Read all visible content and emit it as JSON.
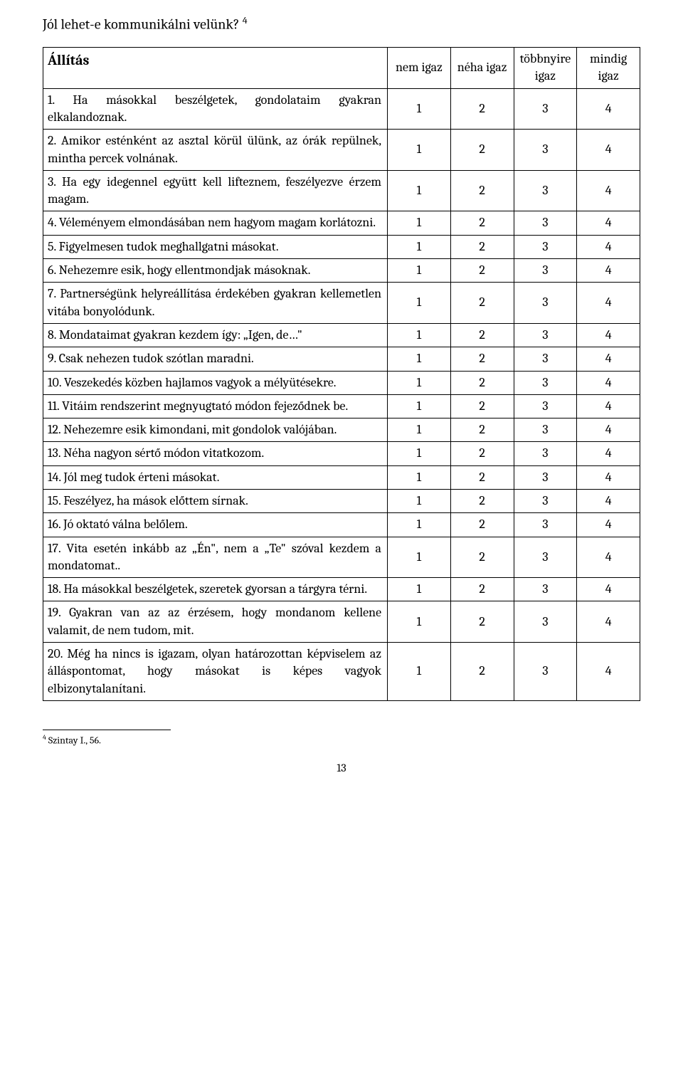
{
  "title_text": "Jól lehet-e kommunikálni velünk? ",
  "title_superscript": "4",
  "headers": {
    "statement": "Állítás",
    "col1": "nem igaz",
    "col2": "néha igaz",
    "col3": "többnyire igaz",
    "col4": "mindig igaz"
  },
  "options": [
    "1",
    "2",
    "3",
    "4"
  ],
  "items": [
    {
      "n": "1.",
      "text": "Ha másokkal beszélgetek, gondolataim gyakran elkalandoznak."
    },
    {
      "n": "2.",
      "text": "Amikor esténként az asztal körül ülünk, az órák repülnek, mintha percek volnának."
    },
    {
      "n": "3.",
      "text": "Ha egy idegennel együtt kell lifteznem, feszélyezve érzem magam."
    },
    {
      "n": "4.",
      "text": "Véleményem elmondásában nem hagyom magam korlátozni."
    },
    {
      "n": "5.",
      "text": "Figyelmesen tudok meghallgatni másokat."
    },
    {
      "n": "6.",
      "text": "Nehezemre esik, hogy ellentmondjak másoknak."
    },
    {
      "n": "7.",
      "text": "Partnerségünk helyreállítása érdekében gyakran kellemetlen vitába bonyolódunk."
    },
    {
      "n": "8.",
      "text": "Mondataimat gyakran kezdem így: „Igen, de…\""
    },
    {
      "n": "9.",
      "text": "Csak nehezen tudok szótlan maradni."
    },
    {
      "n": "10.",
      "text": "Veszekedés közben hajlamos vagyok a mélyütésekre."
    },
    {
      "n": "11.",
      "text": "Vitáim rendszerint megnyugtató módon fejeződnek be."
    },
    {
      "n": "12.",
      "text": "Nehezemre esik kimondani, mit gondolok valójában."
    },
    {
      "n": "13.",
      "text": "Néha nagyon sértő módon vitatkozom."
    },
    {
      "n": "14.",
      "text": "Jól meg tudok érteni másokat."
    },
    {
      "n": "15.",
      "text": "Feszélyez, ha mások előttem sírnak."
    },
    {
      "n": "16.",
      "text": "Jó oktató válna belőlem."
    },
    {
      "n": "17.",
      "text": "Vita esetén inkább az „Én\", nem a „Te\" szóval kezdem a mondatomat.."
    },
    {
      "n": "18.",
      "text": "Ha másokkal beszélgetek, szeretek gyorsan a tárgyra térni."
    },
    {
      "n": "19.",
      "text": "Gyakran van az az érzésem, hogy mondanom kellene valamit, de nem tudom, mit."
    },
    {
      "n": "20.",
      "text": "Még ha nincs is igazam, olyan határozottan képviselem az álláspontomat, hogy másokat is képes vagyok elbizonytalanítani."
    }
  ],
  "footnote_marker": "4",
  "footnote_text": " Szintay I., 56.",
  "page_number": "13"
}
